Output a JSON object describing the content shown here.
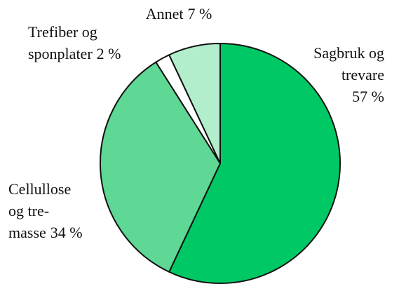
{
  "chart_data": {
    "type": "pie",
    "categories": [
      [
        "Sagbruk og",
        "trevare"
      ],
      [
        "Cellullose",
        "og tre-",
        "masse"
      ],
      [
        "Trefiber og",
        "sponplater"
      ],
      [
        "Annet"
      ]
    ],
    "values": [
      57,
      34,
      2,
      7
    ],
    "value_labels": [
      "57 %",
      "34 %",
      "2 %",
      "7 %"
    ],
    "colors": [
      "#00c864",
      "#5ed894",
      "#ffffff",
      "#b2eecb"
    ]
  }
}
